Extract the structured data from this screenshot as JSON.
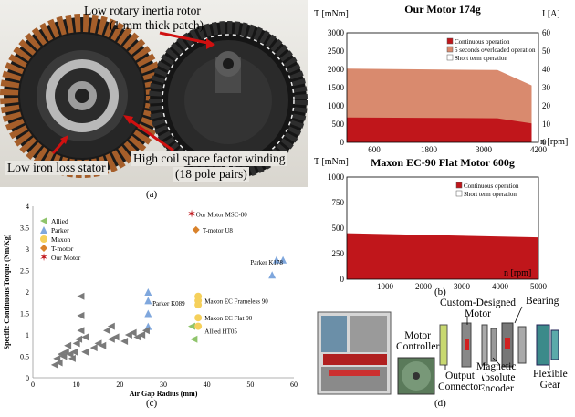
{
  "panel_a": {
    "caption": "(a)",
    "labels": {
      "rotor": "Low rotary inertia rotor",
      "rotor_sub": "(1 mm thick patch)",
      "stator": "Low iron loss stator",
      "winding": "High coil space factor winding",
      "winding_sub": "(18 pole pairs)"
    }
  },
  "panel_b": {
    "caption": "(b)",
    "colors": {
      "continuous": "#c0161b",
      "overload": "#d98a6e",
      "short": "#ffffff"
    }
  },
  "panel_c": {
    "caption": "(c)"
  },
  "panel_d": {
    "caption": "(d)",
    "labels": {
      "custom_motor_1": "Custom-Designed",
      "custom_motor_2": "Motor",
      "bearing": "Bearing",
      "motor_controller_1": "Motor",
      "motor_controller_2": "Controller",
      "magnetic_1": "Magnetic",
      "magnetic_2": "Absolute",
      "magnetic_3": "Encoder",
      "output_1": "Output",
      "output_2": "Connector",
      "flexible_1": "Flexible",
      "flexible_2": "Gear"
    }
  },
  "chart_data": [
    {
      "type": "area",
      "title": "Our Motor 174g",
      "ylabel": "T [mNm]",
      "y2label": "I [A]",
      "xlabel": "n [rpm]",
      "xlim": [
        0,
        4200
      ],
      "ylim": [
        0,
        3000
      ],
      "y2lim": [
        0,
        60
      ],
      "xticks": [
        "600",
        "1800",
        "3000",
        "4200"
      ],
      "yticks": [
        "0",
        "500",
        "1000",
        "1500",
        "2000",
        "2500",
        "3000"
      ],
      "y2ticks": [
        "0",
        "10",
        "20",
        "30",
        "40",
        "50",
        "60"
      ],
      "legend": [
        "Continuous operation",
        "5 seconds overloaded operation",
        "Short term operation"
      ],
      "legend_position": "top-right",
      "series": [
        {
          "name": "5 seconds overloaded operation",
          "x": [
            0,
            3300,
            4050
          ],
          "y": [
            2020,
            1980,
            1560
          ]
        },
        {
          "name": "Continuous operation",
          "x": [
            0,
            3300,
            4050
          ],
          "y": [
            680,
            660,
            520
          ]
        }
      ]
    },
    {
      "type": "area",
      "title": "Maxon EC-90 Flat Motor 600g",
      "ylabel": "T [mNm]",
      "xlabel": "n [rpm]",
      "xlim": [
        0,
        5000
      ],
      "ylim": [
        0,
        1000
      ],
      "xticks": [
        "1000",
        "2000",
        "3000",
        "4000",
        "5000"
      ],
      "yticks": [
        "0",
        "250",
        "500",
        "750",
        "1000"
      ],
      "legend": [
        "Continuous operation",
        "Short term operation"
      ],
      "legend_position": "top-right",
      "series": [
        {
          "name": "Continuous operation",
          "x": [
            0,
            5000
          ],
          "y": [
            450,
            410
          ]
        }
      ]
    },
    {
      "type": "scatter",
      "xlabel": "Air Gap Radius (mm)",
      "ylabel": "Specific Continuous Torque (Nm/Kg)",
      "xlim": [
        0,
        60
      ],
      "ylim": [
        0,
        4
      ],
      "xticks": [
        "0",
        "10",
        "20",
        "30",
        "40",
        "50",
        "60"
      ],
      "yticks": [
        "0",
        "0.5",
        "1",
        "1.5",
        "2",
        "2.5",
        "3",
        "3.5",
        "4"
      ],
      "legend_position": "top-left",
      "series": [
        {
          "name": "Allied",
          "color": "#8fc46b",
          "marker": "tri-left",
          "x": [
            36.5,
            37
          ],
          "y": [
            1.2,
            0.9
          ]
        },
        {
          "name": "Parker",
          "color": "#7fa7dd",
          "marker": "tri-up",
          "x": [
            26.5,
            26.5,
            26.5,
            26.5,
            55,
            56,
            57.5
          ],
          "y": [
            2.0,
            1.8,
            1.5,
            1.2,
            2.4,
            2.75,
            2.75
          ]
        },
        {
          "name": "Maxon",
          "color": "#f5d05b",
          "marker": "circle",
          "x": [
            38,
            38,
            38,
            38,
            38
          ],
          "y": [
            1.9,
            1.8,
            1.7,
            1.4,
            1.2
          ]
        },
        {
          "name": "T-motor",
          "color": "#d9822b",
          "marker": "diamond",
          "x": [
            37.5
          ],
          "y": [
            3.45
          ]
        },
        {
          "name": "Our Motor",
          "color": "#c0161b",
          "marker": "star",
          "x": [
            36.5
          ],
          "y": [
            3.82
          ]
        },
        {
          "name": "Others",
          "color": "#7a7a7a",
          "marker": "tri-left",
          "x": [
            5,
            5.5,
            6,
            6.5,
            7,
            7.5,
            8,
            8.5,
            9,
            9.5,
            10,
            10.5,
            11,
            11,
            11,
            12,
            12,
            14,
            15,
            16,
            17,
            18,
            18,
            19,
            21,
            22,
            23,
            24,
            25,
            26
          ],
          "y": [
            0.3,
            0.45,
            0.35,
            0.55,
            0.5,
            0.6,
            0.75,
            0.55,
            0.45,
            0.6,
            0.8,
            0.9,
            1.9,
            1.45,
            1.1,
            0.95,
            0.6,
            0.7,
            0.8,
            0.75,
            1.1,
            1.2,
            0.9,
            0.95,
            0.85,
            1.0,
            1.05,
            0.95,
            1.0,
            1.1
          ]
        }
      ],
      "annotations": [
        "Our Motor MSC-80",
        "T-motor U8",
        "Parker K178",
        "Parker K089",
        "Maxon EC Frameless 90",
        "Maxon EC Flat 90",
        "Allied HT05"
      ]
    }
  ]
}
